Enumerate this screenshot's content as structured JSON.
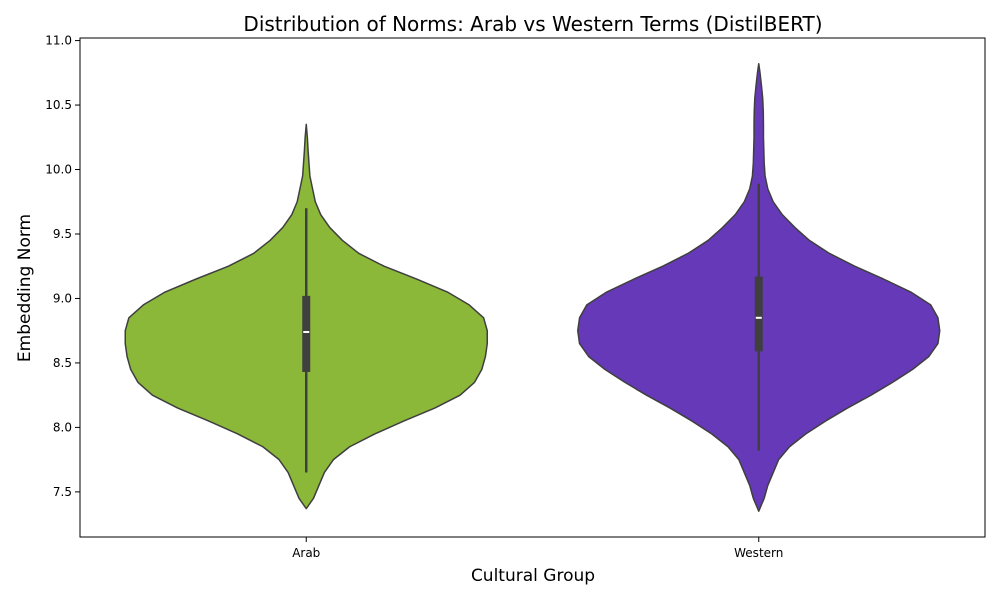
{
  "chart_data": {
    "type": "violin",
    "title": "Distribution of Norms: Arab vs Western Terms (DistilBERT)",
    "xlabel": "Cultural Group",
    "ylabel": "Embedding Norm",
    "categories": [
      "Arab",
      "Western"
    ],
    "ylim": [
      7.15,
      11.02
    ],
    "yticks": [
      7.5,
      8.0,
      8.5,
      9.0,
      9.5,
      10.0,
      10.5,
      11.0
    ],
    "ytick_labels": [
      "7.5",
      "8.0",
      "8.5",
      "9.0",
      "9.5",
      "10.0",
      "10.5",
      "11.0"
    ],
    "grid": false,
    "colors": {
      "Arab": "#8cb83a",
      "Western": "#6539b8",
      "edge": "#3f3f3f",
      "box": "#3f3f3f",
      "median": "#ffffff"
    },
    "series": [
      {
        "name": "Arab",
        "box": {
          "q1": 8.43,
          "median": 8.74,
          "q3": 9.02,
          "whisker_low": 7.65,
          "whisker_high": 9.7
        },
        "density": [
          [
            7.37,
            0.0
          ],
          [
            7.45,
            0.04
          ],
          [
            7.55,
            0.07
          ],
          [
            7.65,
            0.1
          ],
          [
            7.75,
            0.15
          ],
          [
            7.85,
            0.24
          ],
          [
            7.95,
            0.38
          ],
          [
            8.05,
            0.54
          ],
          [
            8.15,
            0.71
          ],
          [
            8.25,
            0.85
          ],
          [
            8.35,
            0.93
          ],
          [
            8.45,
            0.97
          ],
          [
            8.55,
            0.99
          ],
          [
            8.65,
            1.0
          ],
          [
            8.75,
            1.0
          ],
          [
            8.85,
            0.98
          ],
          [
            8.95,
            0.9
          ],
          [
            9.05,
            0.78
          ],
          [
            9.15,
            0.61
          ],
          [
            9.25,
            0.43
          ],
          [
            9.35,
            0.29
          ],
          [
            9.45,
            0.2
          ],
          [
            9.55,
            0.13
          ],
          [
            9.65,
            0.08
          ],
          [
            9.75,
            0.05
          ],
          [
            9.85,
            0.035
          ],
          [
            9.95,
            0.02
          ],
          [
            10.05,
            0.015
          ],
          [
            10.15,
            0.01
          ],
          [
            10.25,
            0.006
          ],
          [
            10.35,
            0.0
          ]
        ]
      },
      {
        "name": "Western",
        "box": {
          "q1": 8.59,
          "median": 8.85,
          "q3": 9.17,
          "whisker_low": 7.82,
          "whisker_high": 9.89
        },
        "density": [
          [
            7.35,
            0.0
          ],
          [
            7.45,
            0.03
          ],
          [
            7.55,
            0.05
          ],
          [
            7.65,
            0.08
          ],
          [
            7.75,
            0.11
          ],
          [
            7.85,
            0.17
          ],
          [
            7.95,
            0.26
          ],
          [
            8.05,
            0.37
          ],
          [
            8.15,
            0.49
          ],
          [
            8.25,
            0.62
          ],
          [
            8.35,
            0.74
          ],
          [
            8.45,
            0.85
          ],
          [
            8.55,
            0.94
          ],
          [
            8.65,
            0.99
          ],
          [
            8.75,
            1.0
          ],
          [
            8.85,
            0.99
          ],
          [
            8.95,
            0.95
          ],
          [
            9.05,
            0.84
          ],
          [
            9.15,
            0.69
          ],
          [
            9.25,
            0.53
          ],
          [
            9.35,
            0.39
          ],
          [
            9.45,
            0.28
          ],
          [
            9.55,
            0.2
          ],
          [
            9.65,
            0.13
          ],
          [
            9.75,
            0.08
          ],
          [
            9.85,
            0.05
          ],
          [
            9.95,
            0.035
          ],
          [
            10.05,
            0.03
          ],
          [
            10.15,
            0.028
          ],
          [
            10.25,
            0.026
          ],
          [
            10.35,
            0.026
          ],
          [
            10.45,
            0.025
          ],
          [
            10.55,
            0.022
          ],
          [
            10.65,
            0.015
          ],
          [
            10.75,
            0.007
          ],
          [
            10.82,
            0.0
          ]
        ]
      }
    ]
  }
}
